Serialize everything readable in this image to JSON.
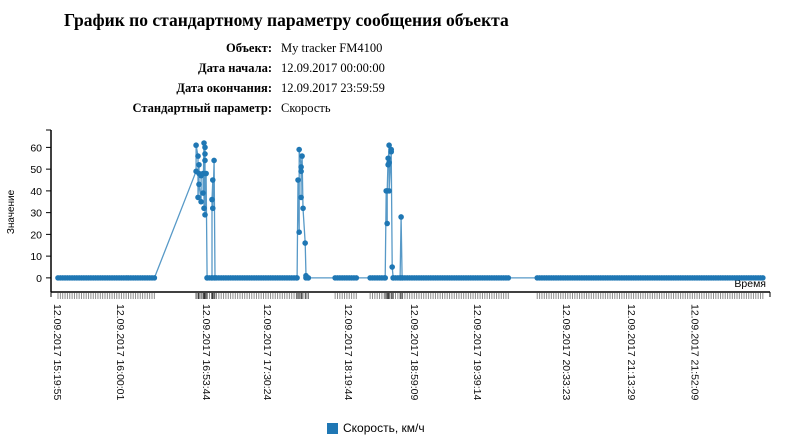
{
  "header": {
    "title": "График по стандартному параметру сообщения объекта",
    "rows": [
      {
        "label": "Объект:",
        "value": "My tracker FM4100"
      },
      {
        "label": "Дата начала:",
        "value": "12.09.2017 00:00:00"
      },
      {
        "label": "Дата окончания:",
        "value": "12.09.2017 23:59:59"
      },
      {
        "label": "Стандартный параметр:",
        "value": "Скорость"
      }
    ]
  },
  "legend": {
    "label": "Скорость, км/ч"
  },
  "chart_data": {
    "type": "line",
    "title": "",
    "xlabel": "Время",
    "ylabel": "Значение",
    "x_units": "minutes since 12.09.2017 15:19:55",
    "xlim": [
      0,
      435
    ],
    "ylim": [
      -6.5,
      68
    ],
    "yticks": [
      0,
      10,
      20,
      30,
      40,
      50,
      60
    ],
    "xtick_labels": [
      {
        "x": 0,
        "label": "12.09.2017 15:19:55"
      },
      {
        "x": 39,
        "label": "12.09.2017 16:00:01"
      },
      {
        "x": 92,
        "label": "12.09.2017 16:53:44"
      },
      {
        "x": 129.6,
        "label": "12.09.2017 17:30:24"
      },
      {
        "x": 179.6,
        "label": "12.09.2017 18:19:44"
      },
      {
        "x": 220.3,
        "label": "12.09.2017 18:59:09"
      },
      {
        "x": 259.3,
        "label": "12.09.2017 19:39:14"
      },
      {
        "x": 314,
        "label": "12.09.2017 20:33:23"
      },
      {
        "x": 354.3,
        "label": "12.09.2017 21:13:29"
      },
      {
        "x": 393.2,
        "label": "12.09.2017 21:52:09"
      }
    ],
    "series": [
      {
        "name": "Скорость, км/ч",
        "color": "#1f77b4",
        "zero_runs": [
          [
            0,
            60
          ],
          [
            92,
            147.5
          ],
          [
            153,
            155.6
          ],
          [
            171,
            184.6
          ],
          [
            192.6,
            201.9
          ],
          [
            206.8,
            279
          ],
          [
            295.7,
            435
          ]
        ],
        "zero_step": 1.45,
        "spikes": [
          [
            [
              85.2,
              49
            ],
            [
              85.2,
              61
            ],
            [
              86.4,
              56
            ],
            [
              86.4,
              37
            ],
            [
              87,
              48
            ],
            [
              87,
              52
            ],
            [
              87,
              43
            ],
            [
              88.3,
              35
            ],
            [
              88.3,
              47
            ],
            [
              89.5,
              48
            ],
            [
              89.5,
              39
            ],
            [
              90.1,
              62
            ],
            [
              90.1,
              32
            ],
            [
              90.7,
              60
            ],
            [
              90.7,
              57
            ],
            [
              90.7,
              54
            ],
            [
              90.7,
              29
            ],
            [
              91.4,
              48
            ],
            [
              92,
              0
            ],
            [
              95,
              0
            ],
            [
              95,
              36
            ],
            [
              95.5,
              45
            ],
            [
              95.5,
              32
            ],
            [
              96.3,
              54
            ],
            [
              96.9,
              0
            ]
          ],
          [
            [
              147.5,
              0
            ],
            [
              148.1,
              45
            ],
            [
              148.8,
              21
            ],
            [
              148.8,
              59
            ],
            [
              150,
              51
            ],
            [
              150,
              37
            ],
            [
              150,
              49
            ],
            [
              150.6,
              56
            ],
            [
              151.2,
              32
            ],
            [
              152.5,
              16
            ],
            [
              153,
              1
            ],
            [
              154.3,
              0
            ]
          ],
          [
            [
              201.9,
              0
            ],
            [
              202.5,
              40
            ],
            [
              203.1,
              25
            ],
            [
              203.1,
              40
            ],
            [
              203.7,
              55
            ],
            [
              203.7,
              52
            ],
            [
              204.3,
              61
            ],
            [
              204.3,
              53
            ],
            [
              204.3,
              40
            ],
            [
              205.6,
              58
            ],
            [
              205.6,
              59
            ],
            [
              206.2,
              5
            ],
            [
              206.8,
              0
            ],
            [
              211.1,
              0
            ],
            [
              211.7,
              28
            ],
            [
              212.3,
              0
            ]
          ]
        ]
      }
    ]
  }
}
